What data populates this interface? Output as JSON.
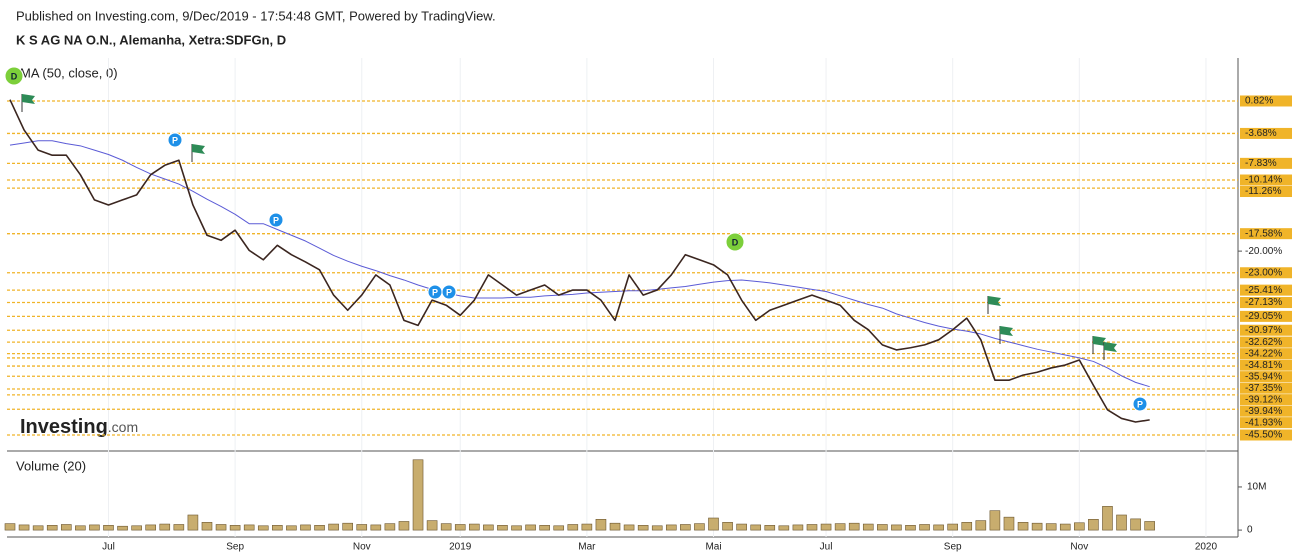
{
  "chart_data": {
    "type": "line",
    "subtitle": "Published on Investing.com, 9/Dec/2019 - 17:54:48 GMT, Powered by TradingView.",
    "title": "K S AG NA O.N., Alemanha, Xetra:SDFGn, D",
    "brand": "Investing",
    "brand_suffix": ".com",
    "categories": [
      null,
      null,
      null,
      null,
      null,
      null,
      null,
      "Jul",
      null,
      null,
      null,
      null,
      null,
      null,
      null,
      null,
      "Sep",
      null,
      null,
      null,
      null,
      null,
      null,
      null,
      null,
      "Nov",
      null,
      null,
      null,
      null,
      null,
      null,
      "2019",
      null,
      null,
      null,
      null,
      null,
      null,
      null,
      null,
      "Mar",
      null,
      null,
      null,
      null,
      null,
      null,
      null,
      null,
      "Mai",
      null,
      null,
      null,
      null,
      null,
      null,
      null,
      "Jul",
      null,
      null,
      null,
      null,
      null,
      null,
      null,
      null,
      "Sep",
      null,
      null,
      null,
      null,
      null,
      null,
      null,
      null,
      "Nov",
      null,
      null,
      null,
      null,
      null,
      null,
      null,
      null,
      "2020"
    ],
    "series": [
      {
        "color": "#3b2620",
        "values": [
          1.0,
          -3.2,
          -6.0,
          -6.7,
          -6.7,
          -9.4,
          -12.9,
          -13.6,
          -12.9,
          -12.2,
          -9.4,
          -8.1,
          -7.4,
          -13.6,
          -17.8,
          -18.5,
          -17.1,
          -19.9,
          -21.2,
          -19.2,
          -20.5,
          -21.5,
          -22.6,
          -26.1,
          -28.2,
          -26.1,
          -23.3,
          -24.7,
          -29.6,
          -30.3,
          -26.8,
          -27.5,
          -28.9,
          -26.8,
          -23.3,
          -24.7,
          -26.1,
          -25.4,
          -24.7,
          -26.1,
          -25.4,
          -25.4,
          -26.8,
          -29.6,
          -23.3,
          -26.1,
          -25.4,
          -23.3,
          -20.5,
          -21.2,
          -21.9,
          -23.3,
          -26.8,
          -29.6,
          -28.2,
          -27.5,
          -26.8,
          -26.1,
          -26.8,
          -27.5,
          -29.6,
          -30.9,
          -33.0,
          -33.7,
          -33.4,
          -33.0,
          -32.3,
          -30.9,
          -29.3,
          -32.3,
          -37.9,
          -37.9,
          -37.2,
          -36.8,
          -36.2,
          -35.8,
          -35.1,
          -38.6,
          -42.0,
          -43.2,
          -43.7,
          -43.4,
          null,
          null,
          null,
          null
        ]
      },
      {
        "name": "MA (50, close, 0)",
        "color": "#5b5bd6",
        "values": [
          -5.3,
          -5.0,
          -4.7,
          -4.7,
          -5.1,
          -5.4,
          -6.0,
          -6.6,
          -7.4,
          -8.4,
          -9.3,
          -10.0,
          -10.7,
          -11.7,
          -12.8,
          -13.8,
          -14.9,
          -16.2,
          -16.2,
          -17.0,
          -17.8,
          -18.6,
          -19.6,
          -20.6,
          -21.4,
          -22.1,
          -22.7,
          -23.4,
          -24.0,
          -24.7,
          -25.3,
          -25.8,
          -26.2,
          -26.5,
          -26.5,
          -26.5,
          -26.4,
          -26.4,
          -26.2,
          -26.1,
          -26.0,
          -25.8,
          -25.7,
          -25.6,
          -25.5,
          -25.5,
          -25.3,
          -25.1,
          -24.9,
          -24.6,
          -24.3,
          -24.1,
          -24.0,
          -24.2,
          -24.4,
          -24.7,
          -25.0,
          -25.3,
          -25.6,
          -26.2,
          -26.8,
          -27.4,
          -27.9,
          -28.7,
          -29.3,
          -29.9,
          -30.4,
          -30.8,
          -31.1,
          -31.5,
          -32.1,
          -32.6,
          -33.1,
          -33.6,
          -34.0,
          -34.4,
          -34.8,
          -35.3,
          -36.2,
          -37.3,
          -38.2,
          -38.8,
          null,
          null,
          null,
          null
        ]
      }
    ],
    "ylim": [
      -47.58,
      6.78
    ],
    "yticks": [
      {
        "value": -20.0,
        "label": "-20.00%"
      }
    ],
    "levels": [
      {
        "value": 0.82,
        "label": "0.82%"
      },
      {
        "value": -3.68,
        "label": "-3.68%"
      },
      {
        "value": -7.83,
        "label": "-7.83%"
      },
      {
        "value": -10.14,
        "label": "-10.14%"
      },
      {
        "value": -11.26,
        "label": "-11.26%"
      },
      {
        "value": -17.58,
        "label": "-17.58%"
      },
      {
        "value": -23.0,
        "label": "-23.00%"
      },
      {
        "value": -25.41,
        "label": "-25.41%"
      },
      {
        "value": -27.13,
        "label": "-27.13%"
      },
      {
        "value": -29.05,
        "label": "-29.05%"
      },
      {
        "value": -30.97,
        "label": "-30.97%"
      },
      {
        "value": -32.62,
        "label": "-32.62%"
      },
      {
        "value": -34.22,
        "label": "-34.22%"
      },
      {
        "value": -34.81,
        "label": "-34.81%"
      },
      {
        "value": -35.94,
        "label": "-35.94%"
      },
      {
        "value": -37.35,
        "label": "-37.35%"
      },
      {
        "value": -39.12,
        "label": "-39.12%"
      },
      {
        "value": -39.94,
        "label": "-39.94%"
      },
      {
        "value": -41.93,
        "label": "-41.93%"
      },
      {
        "value": -45.5,
        "label": "-45.50%"
      }
    ],
    "level_color": "#f0b429",
    "events": [
      {
        "label": "D"
      },
      {
        "label": "P"
      },
      {
        "label": "P"
      },
      {
        "label": "P"
      },
      {
        "label": "P"
      },
      {
        "label": "D"
      },
      {
        "label": "P"
      }
    ],
    "volume": {
      "name": "Volume (20)",
      "color": "#c8ad6e",
      "values": [
        1.5,
        1.2,
        1.0,
        1.1,
        1.3,
        1.0,
        1.2,
        1.1,
        0.9,
        1.0,
        1.2,
        1.4,
        1.3,
        3.5,
        1.8,
        1.3,
        1.1,
        1.2,
        1.0,
        1.1,
        1.0,
        1.2,
        1.1,
        1.4,
        1.6,
        1.3,
        1.2,
        1.5,
        2.0,
        16.3,
        2.2,
        1.5,
        1.3,
        1.4,
        1.2,
        1.1,
        1.0,
        1.2,
        1.1,
        1.0,
        1.3,
        1.4,
        2.5,
        1.6,
        1.2,
        1.1,
        1.0,
        1.2,
        1.3,
        1.5,
        2.8,
        1.8,
        1.4,
        1.2,
        1.1,
        1.0,
        1.2,
        1.3,
        1.4,
        1.5,
        1.6,
        1.4,
        1.3,
        1.2,
        1.1,
        1.3,
        1.2,
        1.4,
        1.8,
        2.2,
        4.5,
        3.0,
        1.8,
        1.6,
        1.5,
        1.4,
        1.7,
        2.5,
        5.5,
        3.5,
        2.6,
        2.0,
        null,
        null,
        null,
        null
      ],
      "ylim": [
        -1.6,
        18.1
      ],
      "yticks": [
        0,
        {
          "value": 10,
          "label": "10M"
        }
      ]
    }
  }
}
